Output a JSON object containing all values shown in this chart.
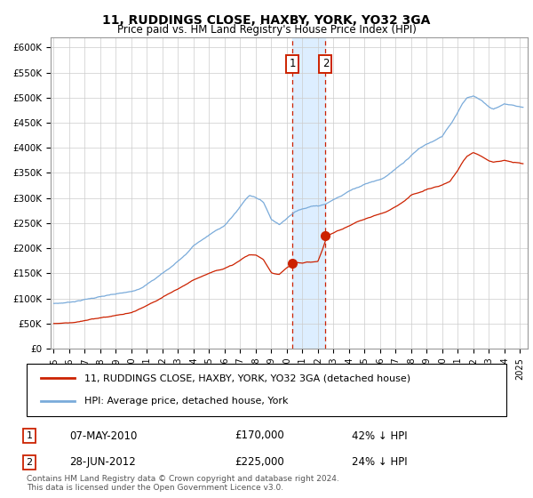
{
  "title": "11, RUDDINGS CLOSE, HAXBY, YORK, YO32 3GA",
  "subtitle": "Price paid vs. HM Land Registry's House Price Index (HPI)",
  "ylim": [
    0,
    620000
  ],
  "xlim_start": 1994.8,
  "xlim_end": 2025.5,
  "yticks": [
    0,
    50000,
    100000,
    150000,
    200000,
    250000,
    300000,
    350000,
    400000,
    450000,
    500000,
    550000,
    600000
  ],
  "ytick_labels": [
    "£0",
    "£50K",
    "£100K",
    "£150K",
    "£200K",
    "£250K",
    "£300K",
    "£350K",
    "£400K",
    "£450K",
    "£500K",
    "£550K",
    "£600K"
  ],
  "xtick_labels": [
    "1995",
    "1996",
    "1997",
    "1998",
    "1999",
    "2000",
    "2001",
    "2002",
    "2003",
    "2004",
    "2005",
    "2006",
    "2007",
    "2008",
    "2009",
    "2010",
    "2011",
    "2012",
    "2013",
    "2014",
    "2015",
    "2016",
    "2017",
    "2018",
    "2019",
    "2020",
    "2021",
    "2022",
    "2023",
    "2024",
    "2025"
  ],
  "hpi_color": "#7aabda",
  "price_color": "#cc2200",
  "sale1_date": 2010.37,
  "sale1_price": 170000,
  "sale2_date": 2012.49,
  "sale2_price": 225000,
  "legend1": "11, RUDDINGS CLOSE, HAXBY, YORK, YO32 3GA (detached house)",
  "legend2": "HPI: Average price, detached house, York",
  "annotation1_label": "07-MAY-2010",
  "annotation1_price": "£170,000",
  "annotation1_hpi": "42% ↓ HPI",
  "annotation2_label": "28-JUN-2012",
  "annotation2_price": "£225,000",
  "annotation2_hpi": "24% ↓ HPI",
  "footer": "Contains HM Land Registry data © Crown copyright and database right 2024.\nThis data is licensed under the Open Government Licence v3.0.",
  "bg_color": "#ffffff",
  "grid_color": "#cccccc",
  "shaded_region_color": "#ddeeff"
}
